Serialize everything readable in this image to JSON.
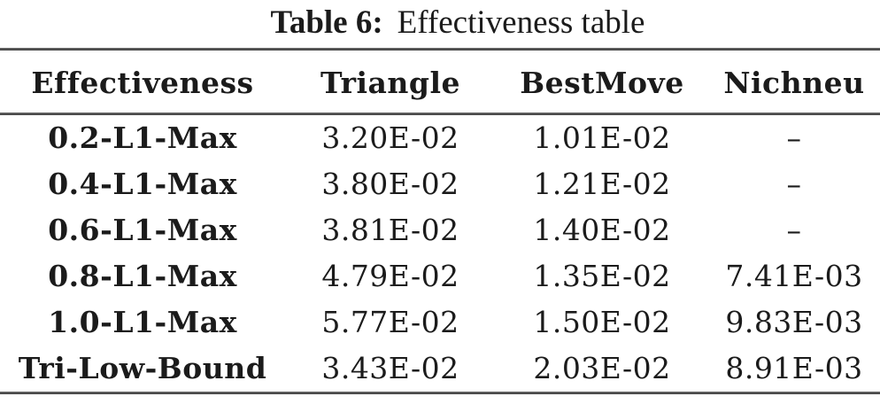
{
  "caption": {
    "label": "Table 6:",
    "text": "Effectiveness table"
  },
  "table": {
    "columns": [
      "Effectiveness",
      "Triangle",
      "BestMove",
      "Nichneu"
    ],
    "rows": [
      {
        "label": "0.2-L1-Max",
        "values": [
          "3.20E-02",
          "1.01E-02",
          "–"
        ]
      },
      {
        "label": "0.4-L1-Max",
        "values": [
          "3.80E-02",
          "1.21E-02",
          "–"
        ]
      },
      {
        "label": "0.6-L1-Max",
        "values": [
          "3.81E-02",
          "1.40E-02",
          "–"
        ]
      },
      {
        "label": "0.8-L1-Max",
        "values": [
          "4.79E-02",
          "1.35E-02",
          "7.41E-03"
        ]
      },
      {
        "label": "1.0-L1-Max",
        "values": [
          "5.77E-02",
          "1.50E-02",
          "9.83E-03"
        ]
      },
      {
        "label": "Tri-Low-Bound",
        "values": [
          "3.43E-02",
          "2.03E-02",
          "8.91E-03"
        ]
      }
    ],
    "colors": {
      "text": "#1b1b1b",
      "rule": "#4e4e4e",
      "background": "#ffffff"
    }
  }
}
